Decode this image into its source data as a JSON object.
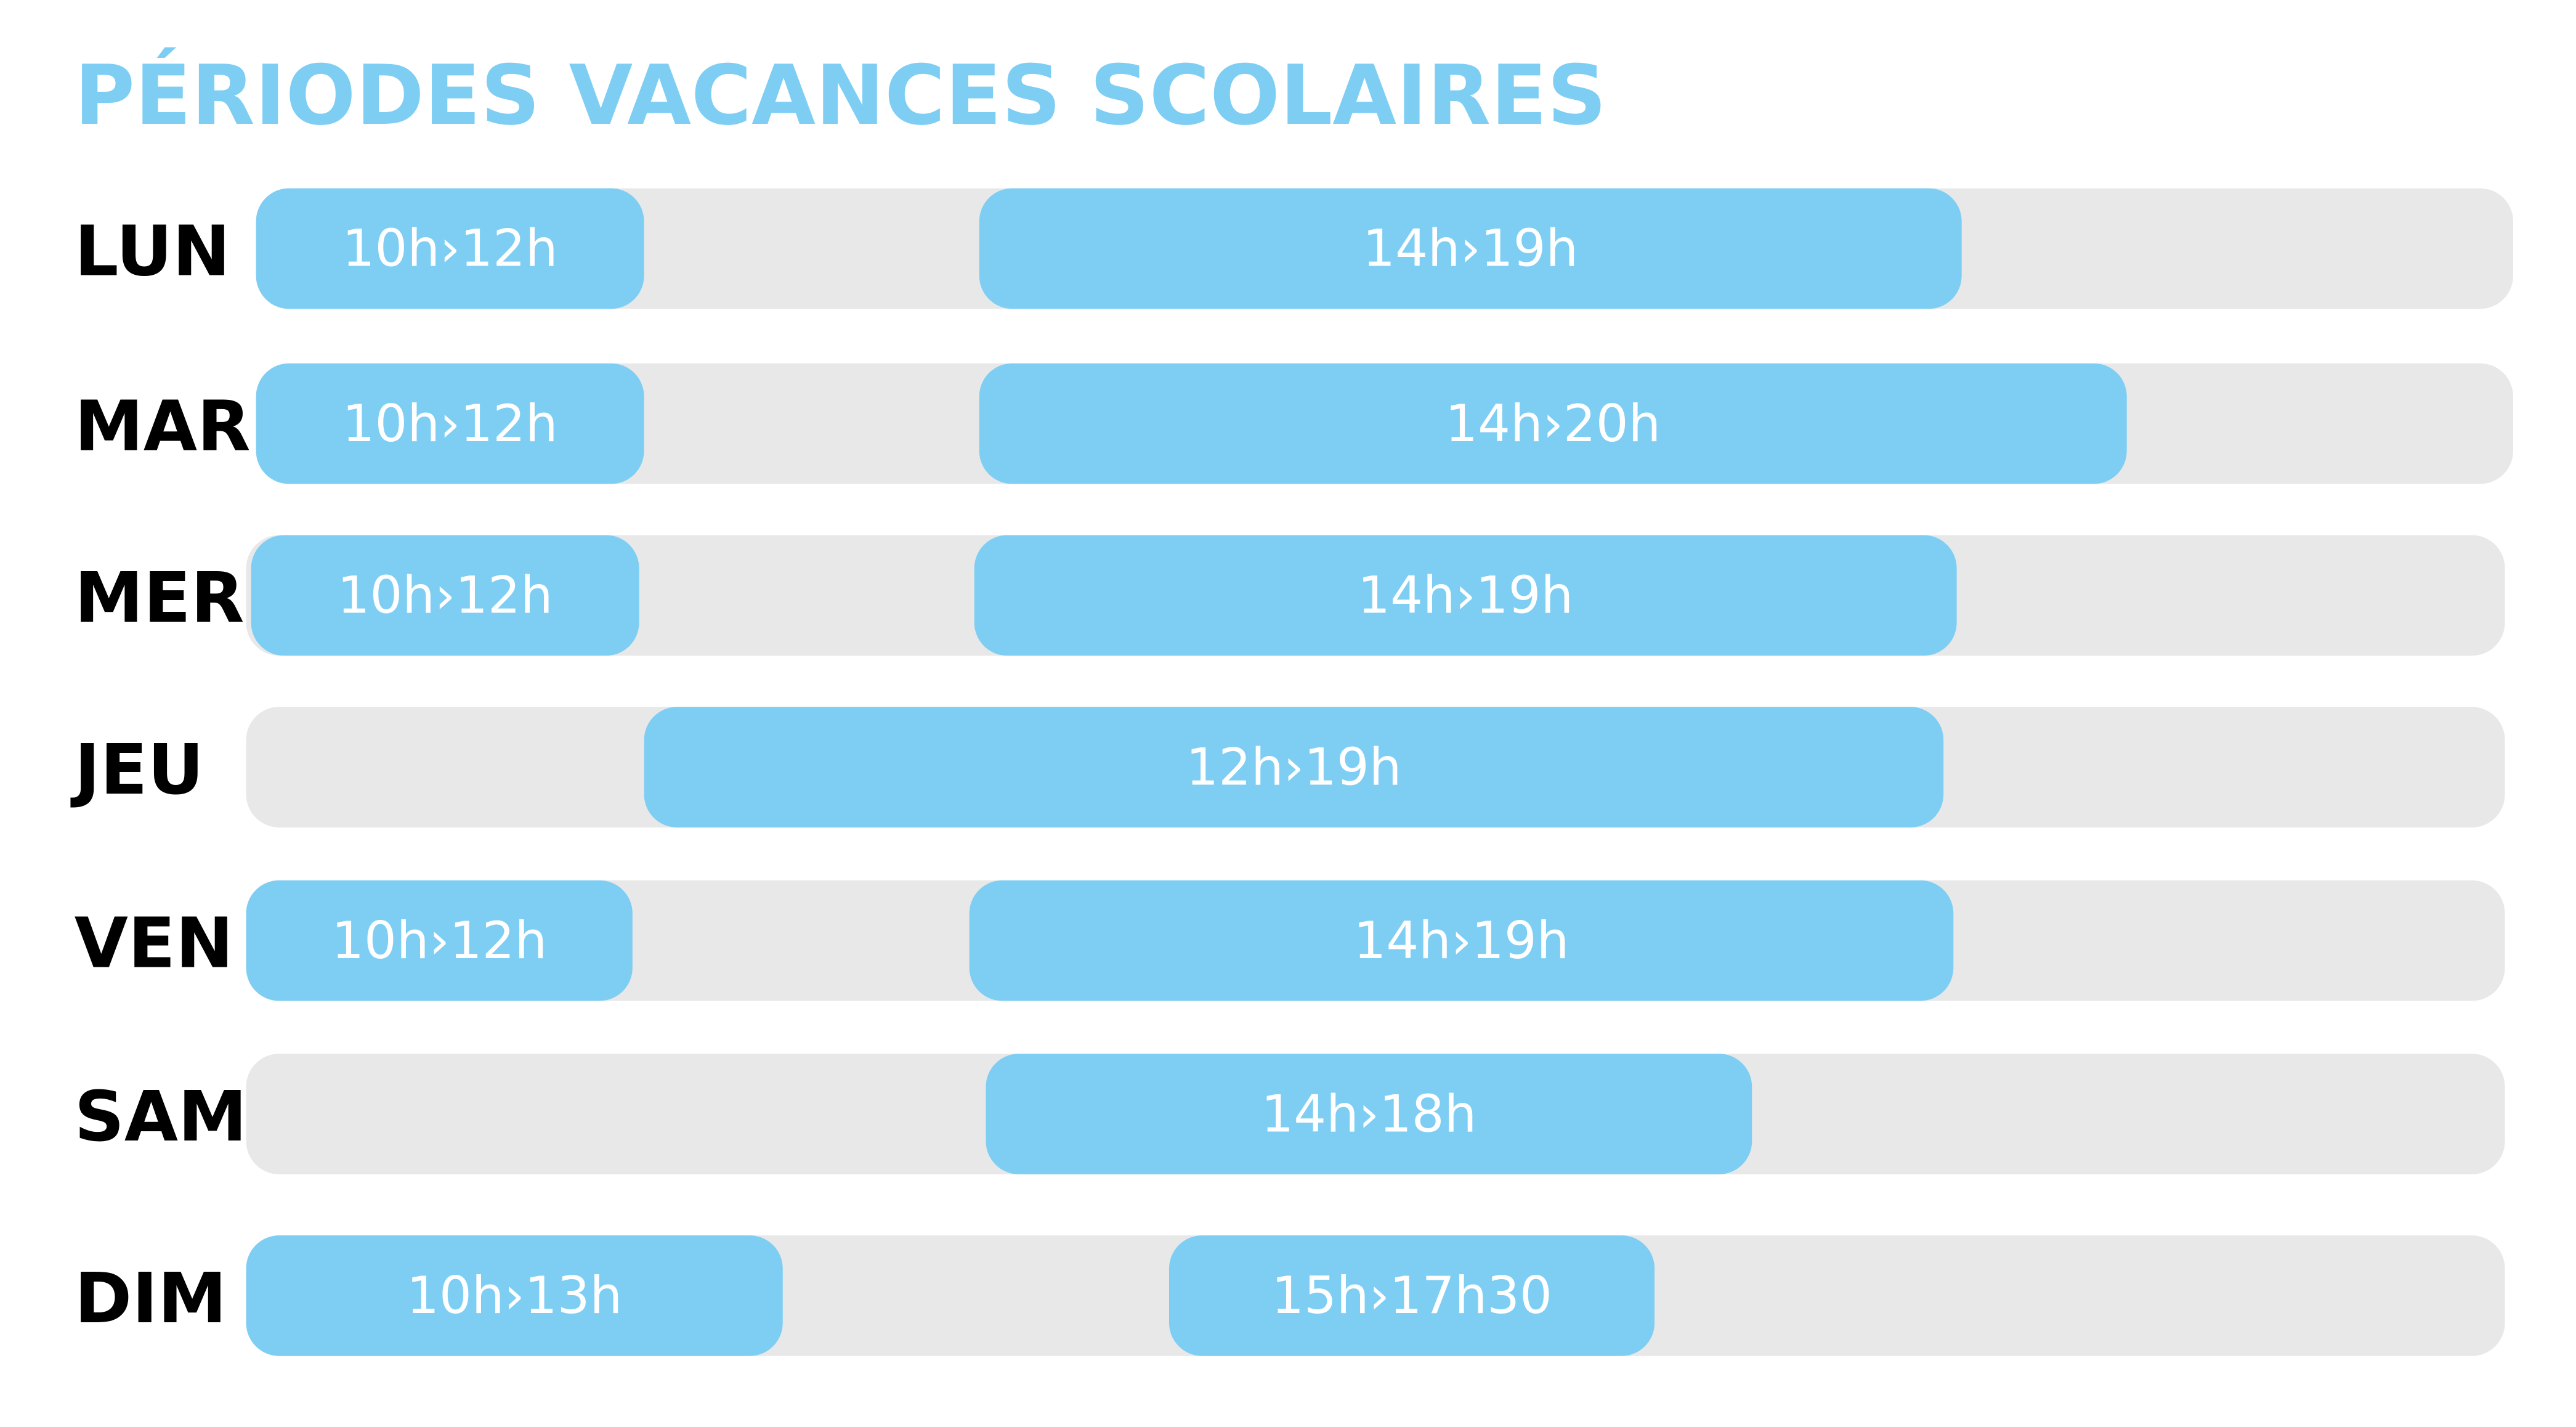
{
  "title": "PÉRIODES VACANCES SCOLAIRES",
  "days": [
    {
      "label": "LUN",
      "slots": [
        "10h›12h",
        "14h›19h"
      ]
    },
    {
      "label": "MAR",
      "slots": [
        "10h›12h",
        "14h›20h"
      ]
    },
    {
      "label": "MER",
      "slots": [
        "10h›12h",
        "14h›19h"
      ]
    },
    {
      "label": "JEU",
      "slots": [
        "12h›19h"
      ]
    },
    {
      "label": "VEN",
      "slots": [
        "10h›12h",
        "14h›19h"
      ]
    },
    {
      "label": "SAM",
      "slots": [
        "14h›18h"
      ]
    },
    {
      "label": "DIM",
      "slots": [
        "10h›13h",
        "15h›17h30"
      ]
    }
  ]
}
